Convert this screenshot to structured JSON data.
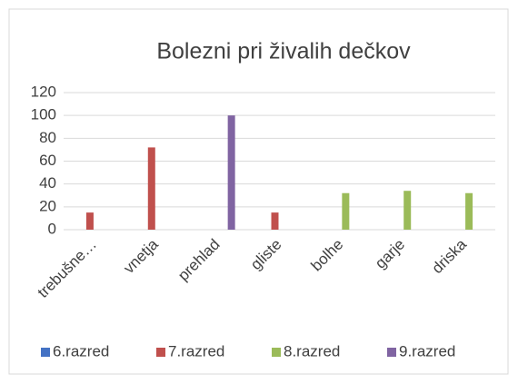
{
  "chart_data": {
    "type": "bar",
    "title": "Bolezni pri živalih dečkov",
    "categories": [
      "trebušne…",
      "vnetja",
      "prehlad",
      "gliste",
      "bolhe",
      "garje",
      "driska"
    ],
    "series": [
      {
        "name": "6.razred",
        "color": "#4472c4",
        "values": [
          null,
          null,
          null,
          null,
          null,
          null,
          null
        ]
      },
      {
        "name": "7.razred",
        "color": "#c0504d",
        "values": [
          15,
          72,
          null,
          15,
          null,
          null,
          null
        ]
      },
      {
        "name": "8.razred",
        "color": "#9bbb59",
        "values": [
          null,
          null,
          null,
          null,
          32,
          34,
          32
        ]
      },
      {
        "name": "9.razred",
        "color": "#8064a2",
        "values": [
          null,
          null,
          100,
          null,
          null,
          null,
          null
        ]
      }
    ],
    "ylim": [
      0,
      120
    ],
    "yticks": [
      0,
      20,
      40,
      60,
      80,
      100,
      120
    ],
    "grid": true,
    "legend": "bottom"
  }
}
